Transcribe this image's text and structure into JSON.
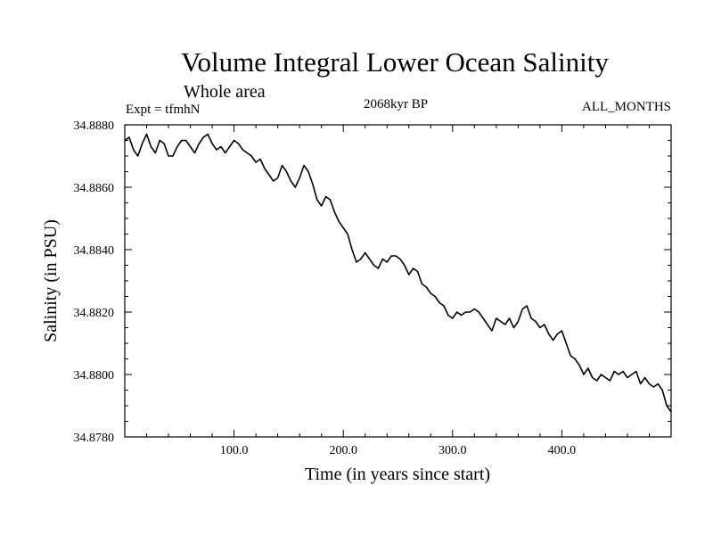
{
  "chart_data": {
    "type": "line",
    "title": "Volume Integral Lower Ocean Salinity",
    "subtitle": "Whole area",
    "left_label": "Expt = tfmhN",
    "center_label": "2068kyr BP",
    "right_label": "ALL_MONTHS",
    "xlabel": "Time (in years since start)",
    "ylabel": "Salinity (in PSU)",
    "xlim": [
      0,
      500
    ],
    "ylim": [
      34.878,
      34.888
    ],
    "x_ticks": [
      100,
      200,
      300,
      400
    ],
    "x_tick_labels": [
      "100.0",
      "200.0",
      "300.0",
      "400.0"
    ],
    "y_ticks": [
      34.878,
      34.88,
      34.882,
      34.884,
      34.886,
      34.888
    ],
    "y_tick_labels": [
      "34.8780",
      "34.8800",
      "34.8820",
      "34.8840",
      "34.8860",
      "34.8880"
    ],
    "series": [
      {
        "name": "Volume Integral Lower Ocean Salinity",
        "x": [
          0,
          4,
          8,
          12,
          16,
          20,
          24,
          28,
          32,
          36,
          40,
          44,
          48,
          52,
          56,
          60,
          64,
          68,
          72,
          76,
          80,
          84,
          88,
          92,
          96,
          100,
          104,
          108,
          112,
          116,
          120,
          124,
          128,
          132,
          136,
          140,
          144,
          148,
          152,
          156,
          160,
          164,
          168,
          172,
          176,
          180,
          184,
          188,
          192,
          196,
          200,
          204,
          208,
          212,
          216,
          220,
          224,
          228,
          232,
          236,
          240,
          244,
          248,
          252,
          256,
          260,
          264,
          268,
          272,
          276,
          280,
          284,
          288,
          292,
          296,
          300,
          304,
          308,
          312,
          316,
          320,
          324,
          328,
          332,
          336,
          340,
          344,
          348,
          352,
          356,
          360,
          364,
          368,
          372,
          376,
          380,
          384,
          388,
          392,
          396,
          400,
          404,
          408,
          412,
          416,
          420,
          424,
          428,
          432,
          436,
          440,
          444,
          448,
          452,
          456,
          460,
          464,
          468,
          472,
          476,
          480,
          484,
          488,
          492,
          496,
          500
        ],
        "y": [
          34.8875,
          34.8876,
          34.8872,
          34.887,
          34.8874,
          34.8877,
          34.8873,
          34.8871,
          34.8875,
          34.8874,
          34.887,
          34.887,
          34.8873,
          34.8875,
          34.8875,
          34.8873,
          34.8871,
          34.8874,
          34.8876,
          34.8877,
          34.8874,
          34.8872,
          34.8873,
          34.8871,
          34.8873,
          34.8875,
          34.8874,
          34.8872,
          34.8871,
          34.887,
          34.8868,
          34.8869,
          34.8866,
          34.8864,
          34.8862,
          34.8863,
          34.8867,
          34.8865,
          34.8862,
          34.886,
          34.8863,
          34.8867,
          34.8865,
          34.8861,
          34.8856,
          34.8854,
          34.8857,
          34.8856,
          34.8852,
          34.8849,
          34.8847,
          34.8845,
          34.884,
          34.8836,
          34.8837,
          34.8839,
          34.8837,
          34.8835,
          34.8834,
          34.8837,
          34.8836,
          34.8838,
          34.8838,
          34.8837,
          34.8835,
          34.8832,
          34.8834,
          34.8833,
          34.8829,
          34.8828,
          34.8826,
          34.8825,
          34.8823,
          34.8822,
          34.8819,
          34.8818,
          34.882,
          34.8819,
          34.882,
          34.882,
          34.8821,
          34.882,
          34.8818,
          34.8816,
          34.8814,
          34.8818,
          34.8817,
          34.8816,
          34.8818,
          34.8815,
          34.8817,
          34.8821,
          34.8822,
          34.8818,
          34.8817,
          34.8815,
          34.8816,
          34.8813,
          34.8811,
          34.8813,
          34.8814,
          34.881,
          34.8806,
          34.8805,
          34.8803,
          34.88,
          34.8802,
          34.8799,
          34.8798,
          34.88,
          34.8799,
          34.8798,
          34.8801,
          34.88,
          34.8801,
          34.8799,
          34.88,
          34.8801,
          34.8797,
          34.8799,
          34.8797,
          34.8796,
          34.8797,
          34.8795,
          34.879,
          34.8788
        ]
      }
    ]
  }
}
